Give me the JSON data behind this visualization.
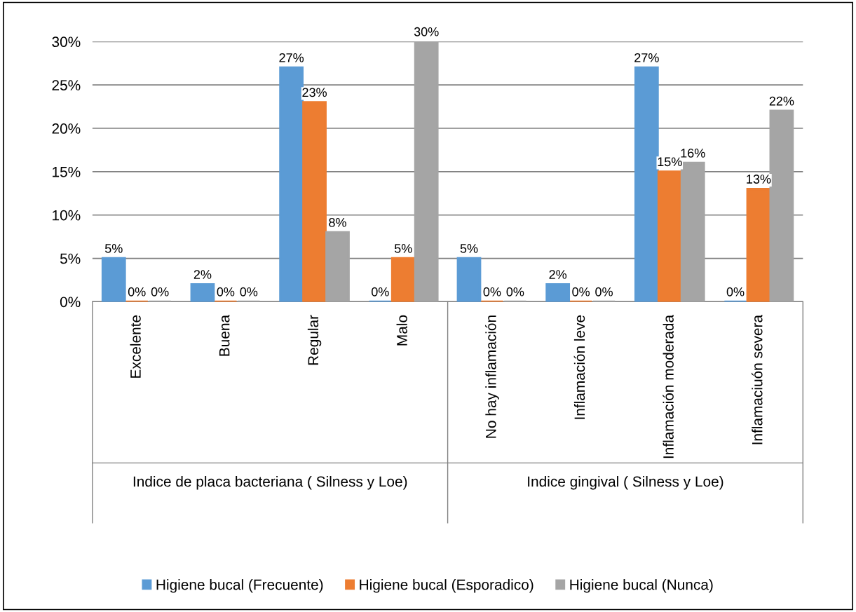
{
  "chart_data": {
    "type": "bar",
    "categories": [
      "Excelente",
      "Buena",
      "Regular",
      "Malo",
      "No hay inflamación",
      "Inflamación leve",
      "Inflamación moderada",
      "Inflamaciuón severa"
    ],
    "series": [
      {
        "name": "Higiene bucal (Frecuente)",
        "color": "#5b9bd5",
        "values": [
          5,
          2,
          27,
          0,
          5,
          2,
          27,
          0
        ],
        "value_labels": [
          "5%",
          "2%",
          "27%",
          "0%",
          "5%",
          "2%",
          "27%",
          "0%"
        ]
      },
      {
        "name": "Higiene bucal (Esporadico)",
        "color": "#ed7d31",
        "values": [
          0,
          0,
          23,
          5,
          0,
          0,
          15,
          13
        ],
        "value_labels": [
          "0%",
          "0%",
          "23%",
          "5%",
          "0%",
          "0%",
          "15%",
          "13%"
        ]
      },
      {
        "name": "Higiene bucal (Nunca)",
        "color": "#a5a5a5",
        "values": [
          0,
          0,
          8,
          30,
          0,
          0,
          16,
          22
        ],
        "value_labels": [
          "0%",
          "0%",
          "8%",
          "30%",
          "0%",
          "0%",
          "16%",
          "22%"
        ]
      }
    ],
    "annotations": [
      "Indice de placa bacteriana ( Silness y Loe)",
      "Indice gingival ( Silness y Loe)"
    ],
    "ylim": [
      0,
      30
    ],
    "yticks": [
      {
        "value": 0,
        "label": "0%"
      },
      {
        "value": 5,
        "label": "5%"
      },
      {
        "value": 10,
        "label": "10%"
      },
      {
        "value": 15,
        "label": "15%"
      },
      {
        "value": 20,
        "label": "20%"
      },
      {
        "value": 25,
        "label": "25%"
      },
      {
        "value": 30,
        "label": "30%"
      }
    ],
    "grid": "y",
    "legend": "bottom"
  }
}
